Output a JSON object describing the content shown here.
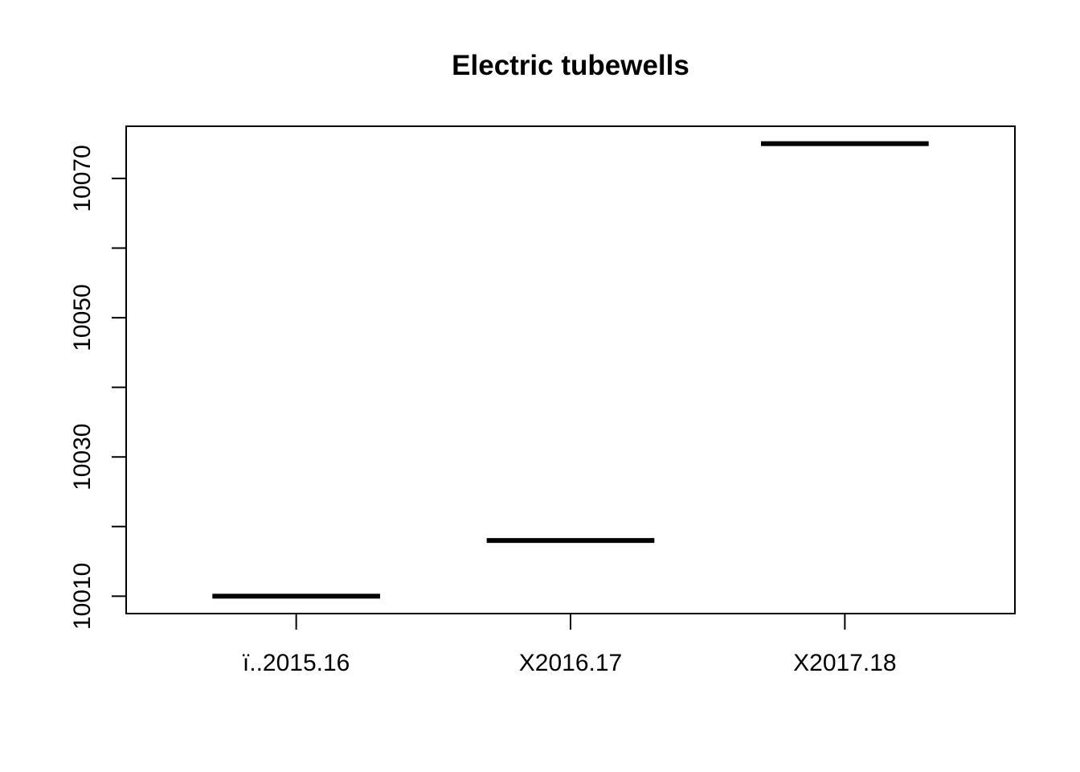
{
  "chart_data": {
    "type": "boxplot",
    "title": "Electric tubewells",
    "xlabel": "",
    "ylabel": "",
    "categories": [
      "ï..2015.16",
      "X2016.17",
      "X2017.18"
    ],
    "values": [
      10010,
      10018,
      10075
    ],
    "ylim": [
      10007.5,
      10077.5
    ],
    "yticks": [
      10010,
      10020,
      10030,
      10040,
      10050,
      10060,
      10070
    ],
    "yticks_labeled": [
      10010,
      10030,
      10050,
      10070
    ],
    "grid": false,
    "legend": "none",
    "colors": {
      "line": "#000000",
      "background": "#ffffff"
    }
  }
}
